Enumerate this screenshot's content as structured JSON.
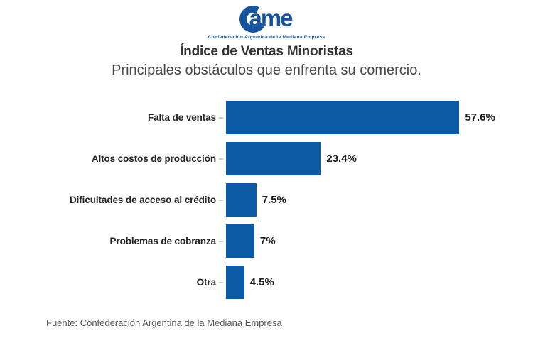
{
  "logo": {
    "text": "ame",
    "tagline": "Confederación Argentina de la Mediana Empresa",
    "color": "#15559e"
  },
  "header": {
    "title": "Índice de Ventas Minoristas",
    "subtitle": "Principales obstáculos que enfrenta su comercio."
  },
  "chart_data": {
    "type": "bar",
    "orientation": "horizontal",
    "title": "Índice de Ventas Minoristas",
    "subtitle": "Principales obstáculos que enfrenta su comercio.",
    "categories": [
      "Falta de ventas",
      "Altos costos de producción",
      "Dificultades de acceso al crédito",
      "Problemas de cobranza",
      "Otra"
    ],
    "values": [
      57.6,
      23.4,
      7.5,
      7,
      4.5
    ],
    "value_labels": [
      "57.6%",
      "23.4%",
      "7.5%",
      "7%",
      "4.5%"
    ],
    "bar_color": "#0b5aa5",
    "xlim": [
      0,
      60
    ],
    "grid": false,
    "legend": false
  },
  "footer": {
    "source": "Fuente: Confederación Argentina de la Mediana Empresa"
  }
}
